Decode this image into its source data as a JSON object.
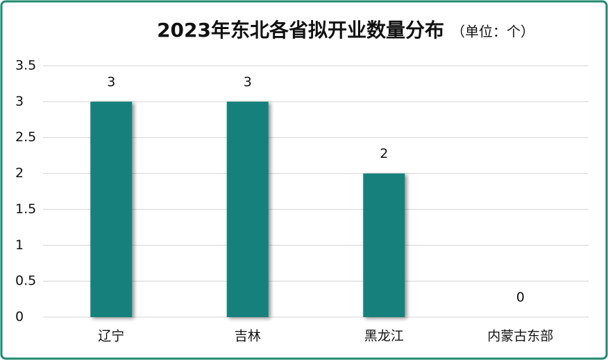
{
  "chart_data": {
    "type": "bar",
    "title": "2023年东北各省拟开业数量分布",
    "subtitle": "（单位：个）",
    "categories": [
      "辽宁",
      "吉林",
      "黑龙江",
      "内蒙古东部"
    ],
    "values": [
      3,
      3,
      2,
      0
    ],
    "color": "#13817b",
    "ylim": [
      0,
      3.5
    ],
    "yticks": [
      0,
      0.5,
      1,
      1.5,
      2,
      2.5,
      3,
      3.5
    ],
    "grid": true
  }
}
